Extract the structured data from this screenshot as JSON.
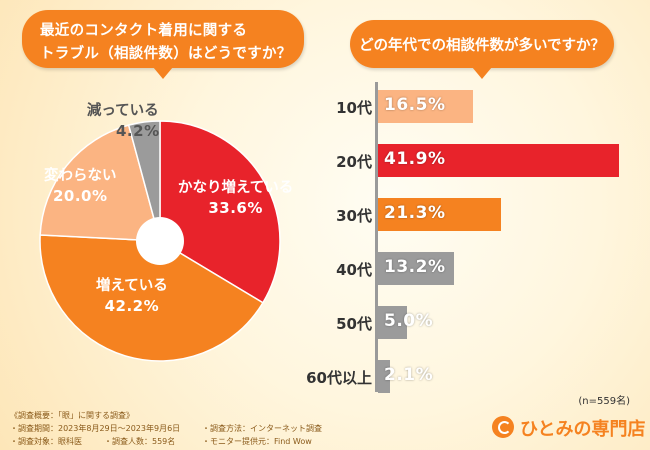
{
  "question_left": {
    "line1": "最近のコンタクト着用に関する",
    "line2": "トラブル（相談件数）はどうですか？"
  },
  "question_right": "どの年代での相談件数が多いですか？",
  "colors": {
    "accent": "#f58220",
    "red": "#e8232b",
    "orange": "#f58220",
    "light_orange": "#fbb482",
    "gray": "#9b9b9b"
  },
  "chart_data": [
    {
      "type": "pie",
      "style": "donut",
      "title": "最近のコンタクト着用に関するトラブル（相談件数）はどうですか？",
      "slices": [
        {
          "label": "かなり増えている",
          "value": 33.6,
          "value_text": "33.6%",
          "color": "#e8232b"
        },
        {
          "label": "増えている",
          "value": 42.2,
          "value_text": "42.2%",
          "color": "#f58220"
        },
        {
          "label": "変わらない",
          "value": 20.0,
          "value_text": "20.0%",
          "color": "#fbb482"
        },
        {
          "label": "減っている",
          "value": 4.2,
          "value_text": "4.2%",
          "color": "#9b9b9b"
        }
      ]
    },
    {
      "type": "bar",
      "orientation": "horizontal",
      "title": "どの年代での相談件数が多いですか？",
      "categories": [
        "10代",
        "20代",
        "30代",
        "40代",
        "50代",
        "60代以上"
      ],
      "values": [
        16.5,
        41.9,
        21.3,
        13.2,
        5.0,
        2.1
      ],
      "value_texts": [
        "16.5%",
        "41.9%",
        "21.3%",
        "13.2%",
        "5.0%",
        "2.1%"
      ],
      "colors": [
        "#fbb482",
        "#e8232b",
        "#f58220",
        "#9b9b9b",
        "#9b9b9b",
        "#9b9b9b"
      ],
      "xlim": [
        0,
        45
      ],
      "note": "(n=559名)"
    }
  ],
  "footer": {
    "overview": "《調査概要：「眼」に関する調査》",
    "period": "・調査期間：2023年8月29日～2023年9月6日",
    "target": "・調査対象：眼科医",
    "count": "・調査人数：559名",
    "method": "・調査方法：インターネット調査",
    "provider": "・モニター提供元：Find Wow"
  },
  "logo": "ひとみの専門店"
}
